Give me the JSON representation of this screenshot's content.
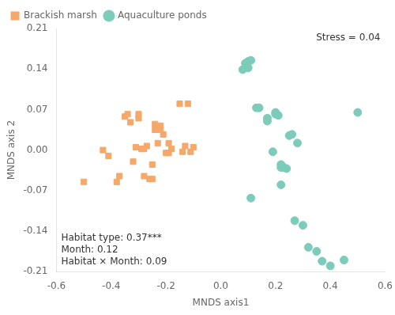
{
  "chart_data": {
    "type": "scatter",
    "x_label": "MNDS axis1",
    "y_label": "MNDS axis 2",
    "annotations": [
      "Stress = 0.04",
      "Habitat type: 0.37***\nMonth: 0.12\nHabitat × Month: 0.09"
    ],
    "series": [
      {
        "name": "Brackish marsh",
        "color": "#F5A86A",
        "marker": "square",
        "x": [
          -0.5,
          -0.43,
          -0.41,
          -0.38,
          -0.37,
          -0.35,
          -0.34,
          -0.33,
          -0.32,
          -0.31,
          -0.3,
          -0.3,
          -0.29,
          -0.28,
          -0.28,
          -0.27,
          -0.26,
          -0.25,
          -0.25,
          -0.24,
          -0.24,
          -0.23,
          -0.22,
          -0.22,
          -0.21,
          -0.2,
          -0.19,
          -0.19,
          -0.18,
          -0.15,
          -0.14,
          -0.13,
          -0.12,
          -0.11,
          -0.1
        ],
        "values": [
          -0.055,
          0.0,
          -0.01,
          -0.055,
          -0.045,
          0.058,
          0.062,
          0.048,
          -0.02,
          0.005,
          0.055,
          0.062,
          0.002,
          -0.045,
          0.002,
          0.007,
          -0.05,
          -0.05,
          -0.025,
          0.035,
          0.045,
          0.012,
          0.035,
          0.042,
          0.027,
          -0.005,
          -0.005,
          0.012,
          0.002,
          0.08,
          -0.003,
          0.007,
          0.08,
          -0.003,
          0.005
        ]
      },
      {
        "name": "Aquaculture ponds",
        "color": "#7DCBBA",
        "marker": "circle",
        "x": [
          0.08,
          0.09,
          0.1,
          0.1,
          0.11,
          0.11,
          0.13,
          0.17,
          0.17,
          0.2,
          0.2,
          0.21,
          0.22,
          0.22,
          0.22,
          0.23,
          0.24,
          0.25,
          0.26,
          0.28,
          0.3,
          0.32,
          0.35,
          0.37,
          0.4,
          0.45,
          0.5,
          0.14,
          0.19,
          0.27
        ],
        "values": [
          0.139,
          0.15,
          0.153,
          0.142,
          0.155,
          -0.083,
          0.073,
          0.055,
          0.05,
          0.062,
          0.065,
          0.06,
          -0.025,
          -0.03,
          -0.06,
          -0.03,
          -0.032,
          0.025,
          0.027,
          0.012,
          -0.13,
          -0.168,
          -0.175,
          -0.192,
          -0.2,
          -0.19,
          0.065,
          0.073,
          -0.003,
          -0.122
        ]
      }
    ],
    "xlim": [
      -0.6,
      0.6
    ],
    "ylim": [
      -0.21,
      0.21
    ],
    "xticks": [
      -0.6,
      -0.4,
      -0.2,
      {
        "value": 0.0,
        "label": "0.0"
      },
      0.2,
      0.4,
      0.6
    ],
    "yticks": [
      -0.21,
      -0.14,
      -0.07,
      {
        "value": 0.0,
        "label": "0.00"
      },
      0.07,
      0.14,
      0.21
    ],
    "grid": false,
    "legend": "upper left"
  }
}
